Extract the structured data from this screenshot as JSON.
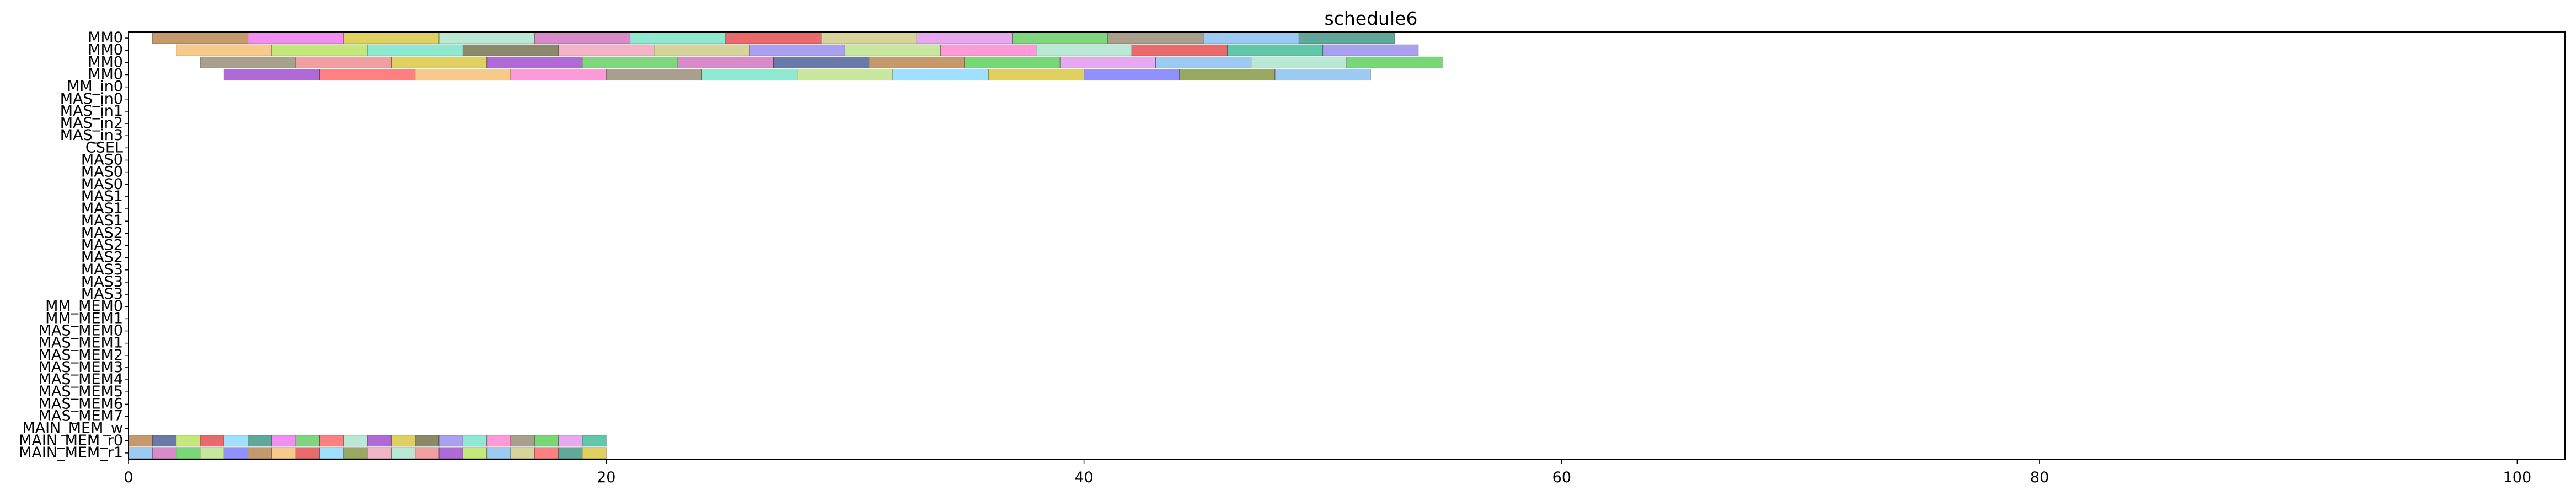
{
  "chart_data": {
    "type": "bar",
    "subtype": "gantt",
    "title": "schedule6",
    "xlabel": "",
    "ylabel": "",
    "xlim": [
      0,
      102
    ],
    "xticks": [
      0,
      20,
      40,
      60,
      80,
      100
    ],
    "grid": false,
    "legend": "none",
    "rows": [
      "MM0",
      "MM0",
      "MM0",
      "MM0",
      "MM_in0",
      "MAS_in0",
      "MAS_in1",
      "MAS_in2",
      "MAS_in3",
      "CSEL",
      "MAS0",
      "MAS0",
      "MAS0",
      "MAS1",
      "MAS1",
      "MAS1",
      "MAS2",
      "MAS2",
      "MAS2",
      "MAS3",
      "MAS3",
      "MAS3",
      "MM_MEM0",
      "MM_MEM1",
      "MAS_MEM0",
      "MAS_MEM1",
      "MAS_MEM2",
      "MAS_MEM3",
      "MAS_MEM4",
      "MAS_MEM5",
      "MAS_MEM6",
      "MAS_MEM7",
      "MAIN_MEM_w",
      "MAIN_MEM_r0",
      "MAIN_MEM_r1"
    ],
    "palette": [
      "#c49a6c",
      "#f08ff0",
      "#e0d060",
      "#b9e8d4",
      "#d98ac9",
      "#8fe8d0",
      "#e86a6a",
      "#d6d49a",
      "#e8a8f0",
      "#7fd67f",
      "#a89f8c",
      "#9ccaf2",
      "#5fa89a",
      "#f7c98a",
      "#c4e87a",
      "#8a8a6a",
      "#f4b4c8",
      "#6a7aa8",
      "#c8e8a0",
      "#aaa0f0",
      "#f0a0a0",
      "#a0e0ff",
      "#ff9ad8",
      "#98a860",
      "#60c8a8",
      "#d0c0e0",
      "#b06ad6",
      "#78d878",
      "#ff8080",
      "#9090ff"
    ],
    "bars": [
      {
        "row": 0,
        "start": 1,
        "end": 5,
        "c": 0
      },
      {
        "row": 0,
        "start": 5,
        "end": 9,
        "c": 1
      },
      {
        "row": 0,
        "start": 9,
        "end": 13,
        "c": 2
      },
      {
        "row": 0,
        "start": 13,
        "end": 17,
        "c": 3
      },
      {
        "row": 0,
        "start": 17,
        "end": 21,
        "c": 4
      },
      {
        "row": 0,
        "start": 21,
        "end": 25,
        "c": 5
      },
      {
        "row": 0,
        "start": 25,
        "end": 29,
        "c": 6
      },
      {
        "row": 0,
        "start": 29,
        "end": 33,
        "c": 7
      },
      {
        "row": 0,
        "start": 33,
        "end": 37,
        "c": 8
      },
      {
        "row": 0,
        "start": 37,
        "end": 41,
        "c": 9
      },
      {
        "row": 0,
        "start": 41,
        "end": 45,
        "c": 10
      },
      {
        "row": 0,
        "start": 45,
        "end": 49,
        "c": 11
      },
      {
        "row": 0,
        "start": 49,
        "end": 53,
        "c": 12
      },
      {
        "row": 1,
        "start": 2,
        "end": 6,
        "c": 13
      },
      {
        "row": 1,
        "start": 6,
        "end": 10,
        "c": 14
      },
      {
        "row": 1,
        "start": 10,
        "end": 14,
        "c": 5
      },
      {
        "row": 1,
        "start": 14,
        "end": 18,
        "c": 15
      },
      {
        "row": 1,
        "start": 18,
        "end": 22,
        "c": 16
      },
      {
        "row": 1,
        "start": 22,
        "end": 26,
        "c": 7
      },
      {
        "row": 1,
        "start": 26,
        "end": 30,
        "c": 19
      },
      {
        "row": 1,
        "start": 30,
        "end": 34,
        "c": 18
      },
      {
        "row": 1,
        "start": 34,
        "end": 38,
        "c": 22
      },
      {
        "row": 1,
        "start": 38,
        "end": 42,
        "c": 3
      },
      {
        "row": 1,
        "start": 42,
        "end": 46,
        "c": 6
      },
      {
        "row": 1,
        "start": 46,
        "end": 50,
        "c": 24
      },
      {
        "row": 1,
        "start": 50,
        "end": 54,
        "c": 19
      },
      {
        "row": 2,
        "start": 3,
        "end": 7,
        "c": 10
      },
      {
        "row": 2,
        "start": 7,
        "end": 11,
        "c": 20
      },
      {
        "row": 2,
        "start": 11,
        "end": 15,
        "c": 2
      },
      {
        "row": 2,
        "start": 15,
        "end": 19,
        "c": 26
      },
      {
        "row": 2,
        "start": 19,
        "end": 23,
        "c": 9
      },
      {
        "row": 2,
        "start": 23,
        "end": 27,
        "c": 4
      },
      {
        "row": 2,
        "start": 27,
        "end": 31,
        "c": 17
      },
      {
        "row": 2,
        "start": 31,
        "end": 35,
        "c": 0
      },
      {
        "row": 2,
        "start": 35,
        "end": 39,
        "c": 27
      },
      {
        "row": 2,
        "start": 39,
        "end": 43,
        "c": 8
      },
      {
        "row": 2,
        "start": 43,
        "end": 47,
        "c": 11
      },
      {
        "row": 2,
        "start": 47,
        "end": 51,
        "c": 3
      },
      {
        "row": 2,
        "start": 51,
        "end": 55,
        "c": 27
      },
      {
        "row": 3,
        "start": 4,
        "end": 8,
        "c": 26
      },
      {
        "row": 3,
        "start": 8,
        "end": 12,
        "c": 28
      },
      {
        "row": 3,
        "start": 12,
        "end": 16,
        "c": 13
      },
      {
        "row": 3,
        "start": 16,
        "end": 20,
        "c": 22
      },
      {
        "row": 3,
        "start": 20,
        "end": 24,
        "c": 10
      },
      {
        "row": 3,
        "start": 24,
        "end": 28,
        "c": 5
      },
      {
        "row": 3,
        "start": 28,
        "end": 32,
        "c": 18
      },
      {
        "row": 3,
        "start": 32,
        "end": 36,
        "c": 21
      },
      {
        "row": 3,
        "start": 36,
        "end": 40,
        "c": 2
      },
      {
        "row": 3,
        "start": 40,
        "end": 44,
        "c": 29
      },
      {
        "row": 3,
        "start": 44,
        "end": 48,
        "c": 23
      },
      {
        "row": 3,
        "start": 48,
        "end": 52,
        "c": 11
      },
      {
        "row": 33,
        "start": 0,
        "end": 1,
        "c": 0
      },
      {
        "row": 33,
        "start": 1,
        "end": 2,
        "c": 17
      },
      {
        "row": 33,
        "start": 2,
        "end": 3,
        "c": 14
      },
      {
        "row": 33,
        "start": 3,
        "end": 4,
        "c": 6
      },
      {
        "row": 33,
        "start": 4,
        "end": 5,
        "c": 21
      },
      {
        "row": 33,
        "start": 5,
        "end": 6,
        "c": 12
      },
      {
        "row": 33,
        "start": 6,
        "end": 7,
        "c": 1
      },
      {
        "row": 33,
        "start": 7,
        "end": 8,
        "c": 9
      },
      {
        "row": 33,
        "start": 8,
        "end": 9,
        "c": 28
      },
      {
        "row": 33,
        "start": 9,
        "end": 10,
        "c": 3
      },
      {
        "row": 33,
        "start": 10,
        "end": 11,
        "c": 26
      },
      {
        "row": 33,
        "start": 11,
        "end": 12,
        "c": 2
      },
      {
        "row": 33,
        "start": 12,
        "end": 13,
        "c": 15
      },
      {
        "row": 33,
        "start": 13,
        "end": 14,
        "c": 19
      },
      {
        "row": 33,
        "start": 14,
        "end": 15,
        "c": 5
      },
      {
        "row": 33,
        "start": 15,
        "end": 16,
        "c": 22
      },
      {
        "row": 33,
        "start": 16,
        "end": 17,
        "c": 10
      },
      {
        "row": 33,
        "start": 17,
        "end": 18,
        "c": 27
      },
      {
        "row": 33,
        "start": 18,
        "end": 19,
        "c": 8
      },
      {
        "row": 33,
        "start": 19,
        "end": 20,
        "c": 24
      },
      {
        "row": 34,
        "start": 0,
        "end": 1,
        "c": 11
      },
      {
        "row": 34,
        "start": 1,
        "end": 2,
        "c": 4
      },
      {
        "row": 34,
        "start": 2,
        "end": 3,
        "c": 27
      },
      {
        "row": 34,
        "start": 3,
        "end": 4,
        "c": 18
      },
      {
        "row": 34,
        "start": 4,
        "end": 5,
        "c": 29
      },
      {
        "row": 34,
        "start": 5,
        "end": 6,
        "c": 0
      },
      {
        "row": 34,
        "start": 6,
        "end": 7,
        "c": 13
      },
      {
        "row": 34,
        "start": 7,
        "end": 8,
        "c": 6
      },
      {
        "row": 34,
        "start": 8,
        "end": 9,
        "c": 21
      },
      {
        "row": 34,
        "start": 9,
        "end": 10,
        "c": 23
      },
      {
        "row": 34,
        "start": 10,
        "end": 11,
        "c": 16
      },
      {
        "row": 34,
        "start": 11,
        "end": 12,
        "c": 3
      },
      {
        "row": 34,
        "start": 12,
        "end": 13,
        "c": 20
      },
      {
        "row": 34,
        "start": 13,
        "end": 14,
        "c": 26
      },
      {
        "row": 34,
        "start": 14,
        "end": 15,
        "c": 14
      },
      {
        "row": 34,
        "start": 15,
        "end": 16,
        "c": 11
      },
      {
        "row": 34,
        "start": 16,
        "end": 17,
        "c": 7
      },
      {
        "row": 34,
        "start": 17,
        "end": 18,
        "c": 28
      },
      {
        "row": 34,
        "start": 18,
        "end": 19,
        "c": 12
      },
      {
        "row": 34,
        "start": 19,
        "end": 20,
        "c": 2
      }
    ]
  }
}
